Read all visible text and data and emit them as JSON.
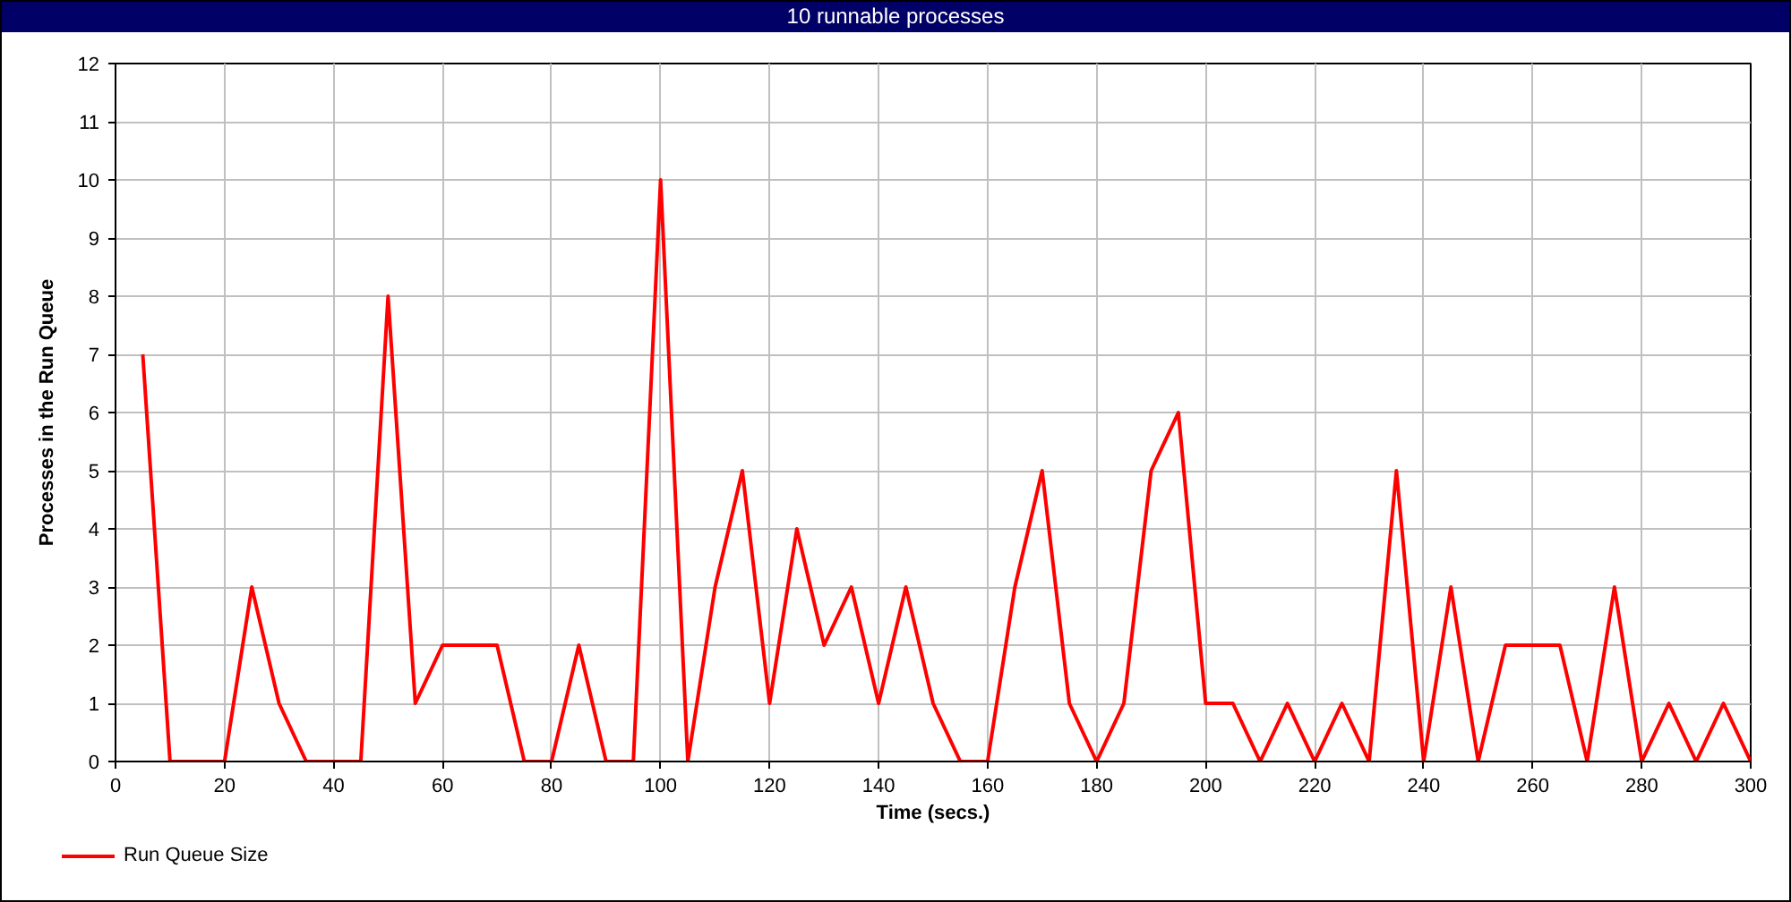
{
  "chart_data": {
    "type": "line",
    "title": "10 runnable processes",
    "xlabel": "Time (secs.)",
    "ylabel": "Processes in the Run Queue",
    "x": [
      5,
      10,
      15,
      20,
      25,
      30,
      35,
      40,
      45,
      50,
      55,
      60,
      65,
      70,
      75,
      80,
      85,
      90,
      95,
      100,
      105,
      110,
      115,
      120,
      125,
      130,
      135,
      140,
      145,
      150,
      155,
      160,
      165,
      170,
      175,
      180,
      185,
      190,
      195,
      200,
      205,
      210,
      215,
      220,
      225,
      230,
      235,
      240,
      245,
      250,
      255,
      260,
      265,
      270,
      275,
      280,
      285,
      290,
      295,
      300
    ],
    "series": [
      {
        "name": "Run Queue Size",
        "color": "#ff0000",
        "values": [
          7,
          0,
          0,
          0,
          3,
          1,
          0,
          0,
          0,
          8,
          1,
          2,
          2,
          2,
          0,
          0,
          2,
          0,
          0,
          10,
          0,
          3,
          5,
          1,
          4,
          2,
          3,
          1,
          3,
          1,
          0,
          0,
          3,
          5,
          1,
          0,
          1,
          5,
          6,
          1,
          1,
          0,
          1,
          0,
          1,
          0,
          5,
          0,
          3,
          0,
          2,
          2,
          2,
          0,
          3,
          0,
          1,
          0,
          1,
          0
        ]
      }
    ],
    "xlim": [
      0,
      300
    ],
    "ylim": [
      0,
      12
    ],
    "xticks": [
      0,
      20,
      40,
      60,
      80,
      100,
      120,
      140,
      160,
      180,
      200,
      220,
      240,
      260,
      280,
      300
    ],
    "yticks": [
      0,
      1,
      2,
      3,
      4,
      5,
      6,
      7,
      8,
      9,
      10,
      11,
      12
    ],
    "grid": true,
    "legend": "bottom left",
    "line_style": "solid"
  }
}
